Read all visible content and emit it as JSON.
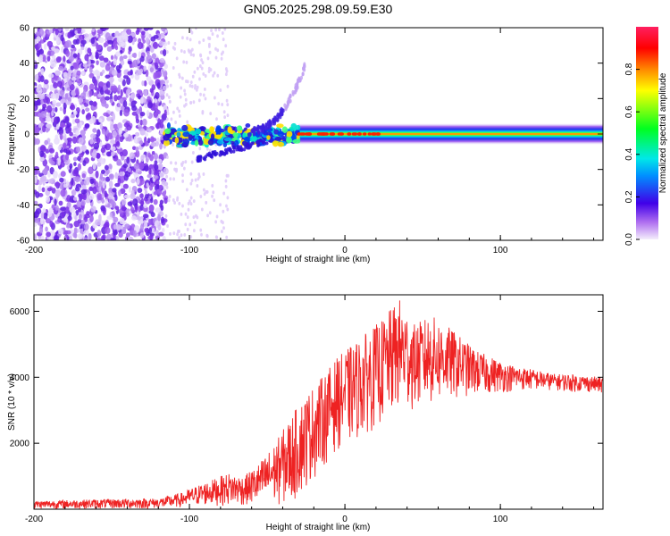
{
  "title": "GN05.2025.298.09.59.E30",
  "colors": {
    "line": "#ee2222",
    "axis": "#000000",
    "background": "#ffffff"
  },
  "chart_data": [
    {
      "type": "heatmap",
      "name": "spectrogram",
      "xlabel": "Height of straight line (km)",
      "ylabel": "Frequency (Hz)",
      "xlim": [
        -200,
        166
      ],
      "ylim": [
        -60,
        60
      ],
      "xticks": [
        {
          "v": -200,
          "label": "-200"
        },
        {
          "v": -100,
          "label": "-100"
        },
        {
          "v": 0,
          "label": "0"
        },
        {
          "v": 100,
          "label": "100"
        }
      ],
      "yticks": [
        {
          "v": 60,
          "label": "60"
        },
        {
          "v": 40,
          "label": "40"
        },
        {
          "v": 20,
          "label": "20"
        },
        {
          "v": 0,
          "label": "0"
        },
        {
          "v": -20,
          "label": "-20"
        },
        {
          "v": -40,
          "label": "-40"
        },
        {
          "v": -60,
          "label": "-60"
        }
      ],
      "description_segments": [
        {
          "x_range": [
            -200,
            -115
          ],
          "content": "broadband noise, low amplitude (~0.1-0.2)"
        },
        {
          "x_range": [
            -115,
            -30
          ],
          "content": "fragmented band near 0 Hz, amplitude ~0.2-0.6, with branch rising to ~40 Hz near -30 km and trailing below to ~-15 Hz"
        },
        {
          "x_range": [
            -30,
            166
          ],
          "content": "continuous band centered near 0 Hz, peak amplitude ~1.0 (red core), width narrowing then widening"
        }
      ],
      "colorbar": {
        "label": "Normalized spectral amplitude",
        "range": [
          0,
          1
        ],
        "ticks": [
          {
            "v": 0.0,
            "label": "0.0"
          },
          {
            "v": 0.2,
            "label": "0.2"
          },
          {
            "v": 0.4,
            "label": "0.4"
          },
          {
            "v": 0.6,
            "label": "0.6"
          },
          {
            "v": 0.8,
            "label": "0.8"
          }
        ]
      }
    },
    {
      "type": "line",
      "name": "snr",
      "xlabel": "Height of straight line (km)",
      "ylabel": "SNR (10 * v/v)",
      "xlim": [
        -200,
        166
      ],
      "ylim": [
        0,
        6500
      ],
      "xticks": [
        {
          "v": -200,
          "label": "-200"
        },
        {
          "v": -100,
          "label": "-100"
        },
        {
          "v": 0,
          "label": "0"
        },
        {
          "v": 100,
          "label": "100"
        }
      ],
      "yticks": [
        {
          "v": 2000,
          "label": "2000"
        },
        {
          "v": 4000,
          "label": "4000"
        },
        {
          "v": 6000,
          "label": "6000"
        }
      ],
      "series": [
        {
          "name": "SNR",
          "x": [
            -200,
            -180,
            -160,
            -140,
            -120,
            -105,
            -95,
            -85,
            -75,
            -65,
            -55,
            -45,
            -35,
            -25,
            -15,
            -5,
            5,
            15,
            25,
            35,
            45,
            55,
            65,
            75,
            85,
            95,
            105,
            115,
            125,
            135,
            145,
            155,
            166
          ],
          "lower": [
            10,
            10,
            10,
            10,
            10,
            50,
            100,
            100,
            100,
            100,
            100,
            100,
            100,
            600,
            1200,
            1800,
            2000,
            2300,
            2600,
            2900,
            3000,
            3100,
            3250,
            3350,
            3450,
            3500,
            3550,
            3600,
            3600,
            3600,
            3550,
            3550,
            3500
          ],
          "upper": [
            250,
            280,
            300,
            320,
            330,
            500,
            720,
            900,
            1100,
            1000,
            1400,
            2000,
            2800,
            3500,
            4000,
            4600,
            5000,
            5400,
            5800,
            6400,
            5600,
            5900,
            5600,
            5200,
            4800,
            4600,
            4400,
            4300,
            4200,
            4100,
            4100,
            4050,
            4000
          ],
          "color": "#ee2222"
        }
      ]
    }
  ]
}
